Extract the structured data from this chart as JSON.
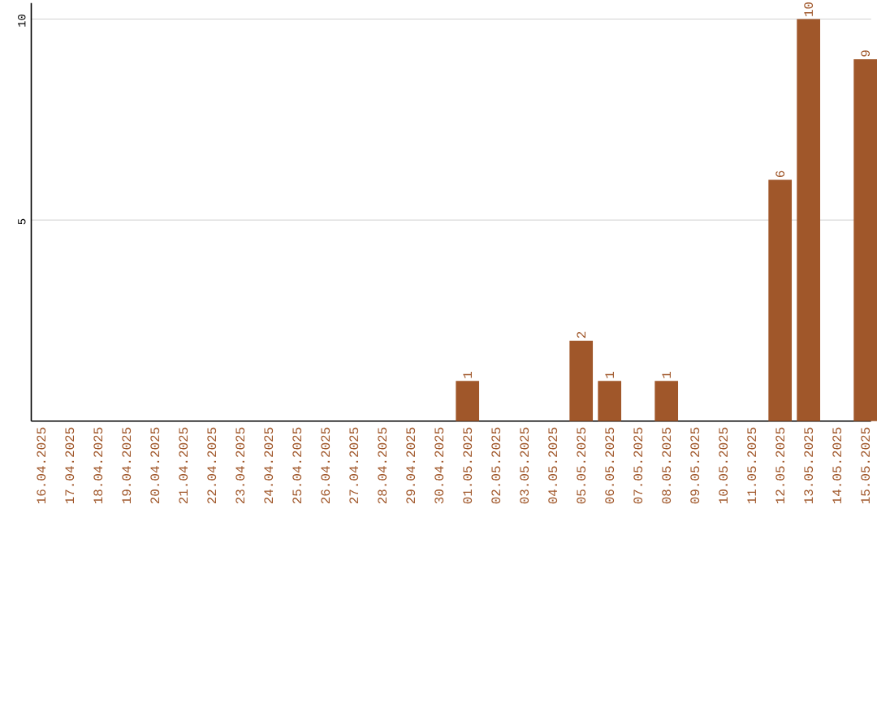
{
  "chart_data": {
    "type": "bar",
    "categories": [
      "16.04.2025",
      "17.04.2025",
      "18.04.2025",
      "19.04.2025",
      "20.04.2025",
      "21.04.2025",
      "22.04.2025",
      "23.04.2025",
      "24.04.2025",
      "25.04.2025",
      "26.04.2025",
      "27.04.2025",
      "28.04.2025",
      "29.04.2025",
      "30.04.2025",
      "01.05.2025",
      "02.05.2025",
      "03.05.2025",
      "04.05.2025",
      "05.05.2025",
      "06.05.2025",
      "07.05.2025",
      "08.05.2025",
      "09.05.2025",
      "10.05.2025",
      "11.05.2025",
      "12.05.2025",
      "13.05.2025",
      "14.05.2025",
      "15.05.2025"
    ],
    "values": [
      0,
      0,
      0,
      0,
      0,
      0,
      0,
      0,
      0,
      0,
      0,
      0,
      0,
      0,
      0,
      1,
      0,
      0,
      0,
      2,
      1,
      0,
      1,
      0,
      0,
      0,
      6,
      10,
      0,
      9
    ],
    "value_labels": [
      null,
      null,
      null,
      null,
      null,
      null,
      null,
      null,
      null,
      null,
      null,
      null,
      null,
      null,
      null,
      "1",
      null,
      null,
      null,
      "2",
      "1",
      null,
      "1",
      null,
      null,
      null,
      "6",
      "10",
      null,
      "9"
    ],
    "color": "#a0572a",
    "ylim": [
      0,
      10.4
    ],
    "yticks": [
      5,
      10
    ],
    "grid": "y"
  }
}
